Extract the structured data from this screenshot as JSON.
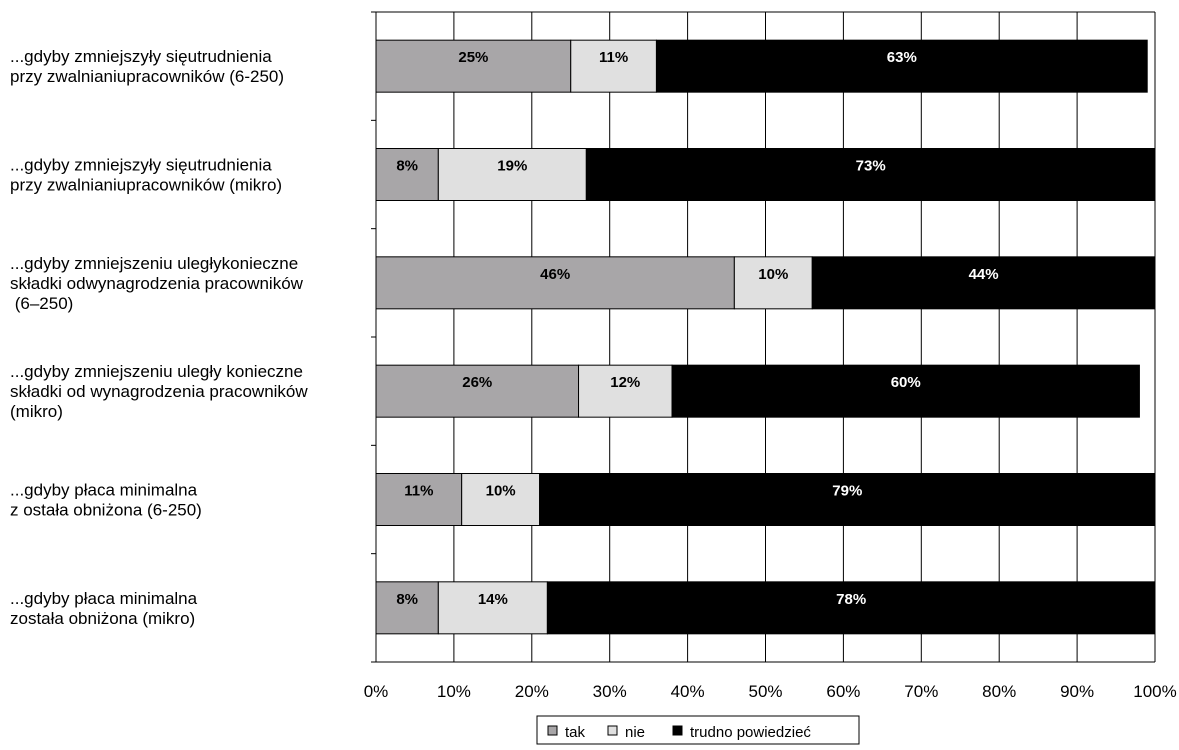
{
  "chart_data": {
    "type": "bar",
    "orientation": "horizontal",
    "stacked": true,
    "categories": [
      [
        "...gdyby zmniejszyły sięutrudnienia",
        "przy zwalnianiupracowników (6-250)"
      ],
      [
        "...gdyby zmniejszyły sięutrudnienia",
        "przy zwalnianiupracowników (mikro)"
      ],
      [
        "...gdyby zmniejszeniu uległykonieczne",
        "składki odwynagrodzenia pracowników",
        " (6–250)"
      ],
      [
        "...gdyby zmniejszeniu uległy konieczne",
        "składki od wynagrodzenia pracowników",
        "(mikro)"
      ],
      [
        "...gdyby płaca minimalna",
        "z ostała obniżona (6-250)"
      ],
      [
        "...gdyby płaca minimalna",
        "została obniżona (mikro)"
      ]
    ],
    "series": [
      {
        "name": "tak",
        "color": "#a8a6a8",
        "label_color": "#000000",
        "values": [
          25,
          8,
          46,
          26,
          11,
          8
        ],
        "labels": [
          "25%",
          "8%",
          "46%",
          "26%",
          "11%",
          "8%"
        ]
      },
      {
        "name": "nie",
        "color": "#e0e0e0",
        "label_color": "#000000",
        "values": [
          11,
          19,
          10,
          12,
          10,
          14
        ],
        "labels": [
          "11%",
          "19%",
          "10%",
          "12%",
          "10%",
          "14%"
        ]
      },
      {
        "name": "trudno powiedzieć",
        "color": "#000000",
        "label_color": "#ffffff",
        "values": [
          63,
          73,
          44,
          60,
          79,
          78
        ],
        "labels": [
          "63%",
          "73%",
          "44%",
          "60%",
          "79%",
          "78%"
        ]
      }
    ],
    "x_ticks": [
      "0%",
      "10%",
      "20%",
      "30%",
      "40%",
      "50%",
      "60%",
      "70%",
      "80%",
      "90%",
      "100%"
    ],
    "xlim": [
      0,
      100
    ],
    "grid": true,
    "legend_position": "bottom-center"
  }
}
